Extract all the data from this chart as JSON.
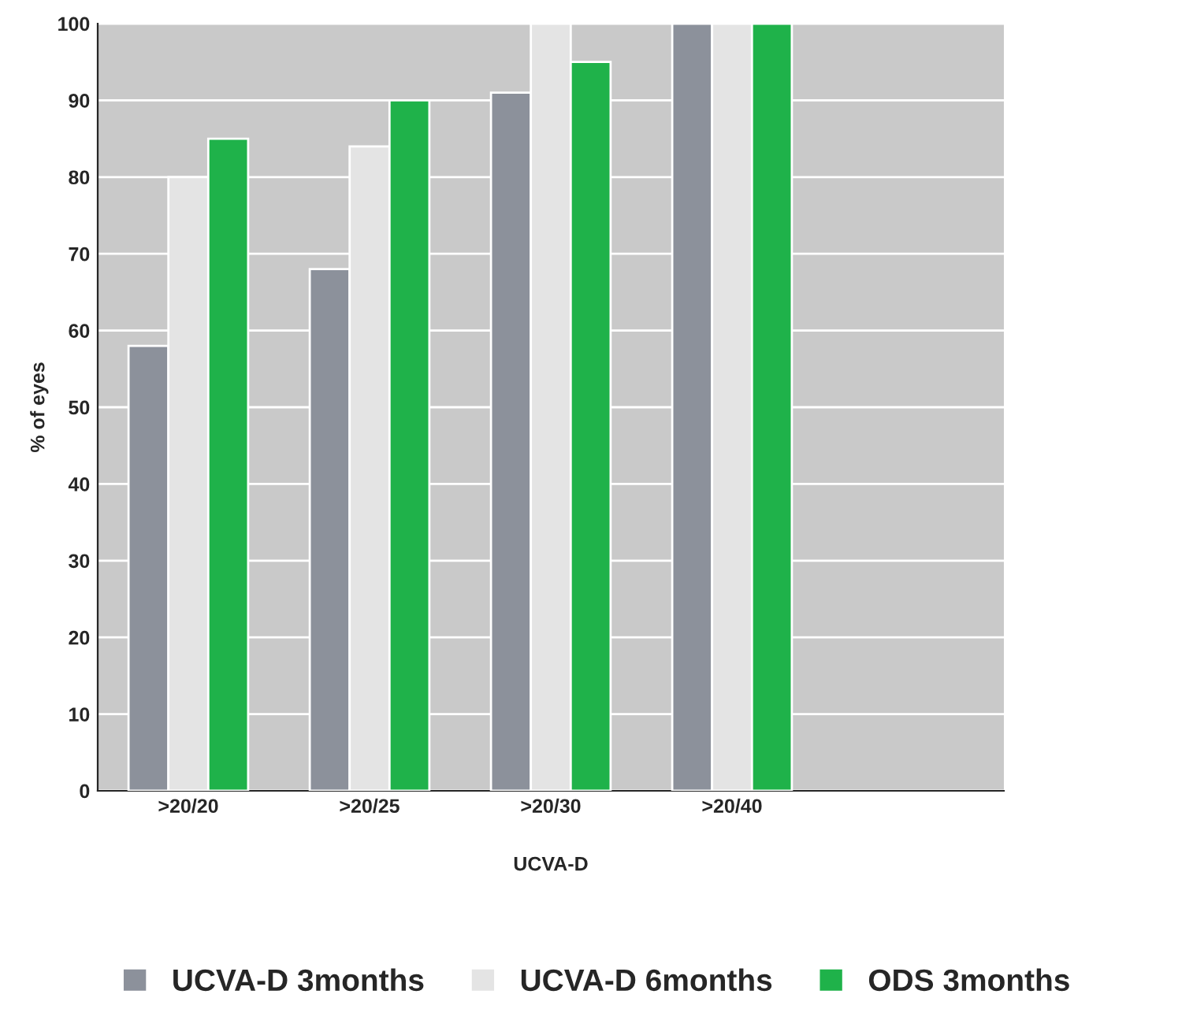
{
  "chart_data": {
    "type": "bar",
    "xlabel": "UCVA-D",
    "ylabel": "% of eyes",
    "categories": [
      ">20/20",
      ">20/25",
      ">20/30",
      ">20/40",
      null
    ],
    "series": [
      {
        "name": "UCVA-D 3months",
        "color": "#8c919b",
        "values": [
          58,
          68,
          91,
          100,
          null
        ]
      },
      {
        "name": "UCVA-D 6months",
        "color": "#e4e4e4",
        "values": [
          80,
          84,
          100,
          100,
          null
        ]
      },
      {
        "name": "ODS 3months",
        "color": "#1fb24a",
        "values": [
          85,
          90,
          95,
          100,
          null
        ]
      }
    ],
    "ylim": [
      0,
      100
    ],
    "yticks": [
      0,
      10,
      20,
      30,
      40,
      50,
      60,
      70,
      80,
      90,
      100
    ],
    "grid": "y",
    "legend": "bottom"
  }
}
